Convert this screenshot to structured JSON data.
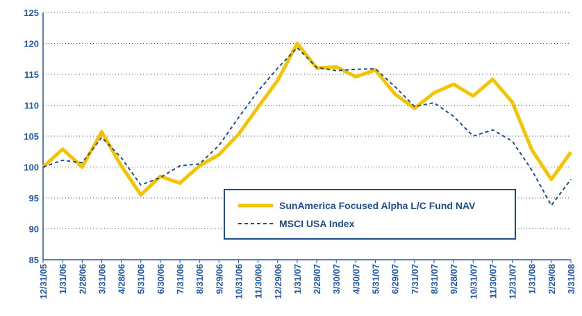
{
  "chart_data": {
    "type": "line",
    "categories": [
      "12/31/05",
      "1/31/06",
      "2/28/06",
      "3/31/06",
      "4/28/06",
      "5/31/06",
      "6/30/06",
      "7/31/06",
      "8/31/06",
      "9/29/06",
      "10/31/06",
      "11/30/06",
      "12/29/06",
      "1/31/07",
      "2/28/07",
      "3/30/07",
      "4/30/07",
      "5/31/07",
      "6/29/07",
      "7/31/07",
      "8/31/07",
      "9/28/07",
      "10/31/07",
      "11/30/07",
      "12/31/07",
      "1/31/08",
      "2/29/08",
      "3/31/08"
    ],
    "series": [
      {
        "name": "SunAmerica Focused Alpha L/C Fund NAV",
        "color": "#f5c400",
        "values": [
          100,
          102.9,
          100,
          105.7,
          100.2,
          95.5,
          98.5,
          97.4,
          100.2,
          102,
          105.3,
          109.7,
          114,
          120,
          116,
          116.2,
          114.6,
          115.7,
          111.8,
          109.5,
          112,
          113.4,
          111.5,
          114.2,
          110.5,
          102.8,
          98,
          102.4
        ]
      },
      {
        "name": "MSCI USA Index",
        "color": "#1f4e8c",
        "values": [
          100,
          101.1,
          100.7,
          104.8,
          101.5,
          97.1,
          98.3,
          100.2,
          100.5,
          103.5,
          108,
          112.3,
          116,
          119.3,
          116.1,
          115.6,
          115.8,
          115.9,
          113,
          109.8,
          110.4,
          108.2,
          105,
          106,
          104.2,
          99.5,
          93.8,
          98
        ]
      }
    ],
    "ylim": [
      85,
      125
    ],
    "yticks": [
      85,
      90,
      95,
      100,
      105,
      110,
      115,
      120,
      125
    ],
    "grid": true
  }
}
